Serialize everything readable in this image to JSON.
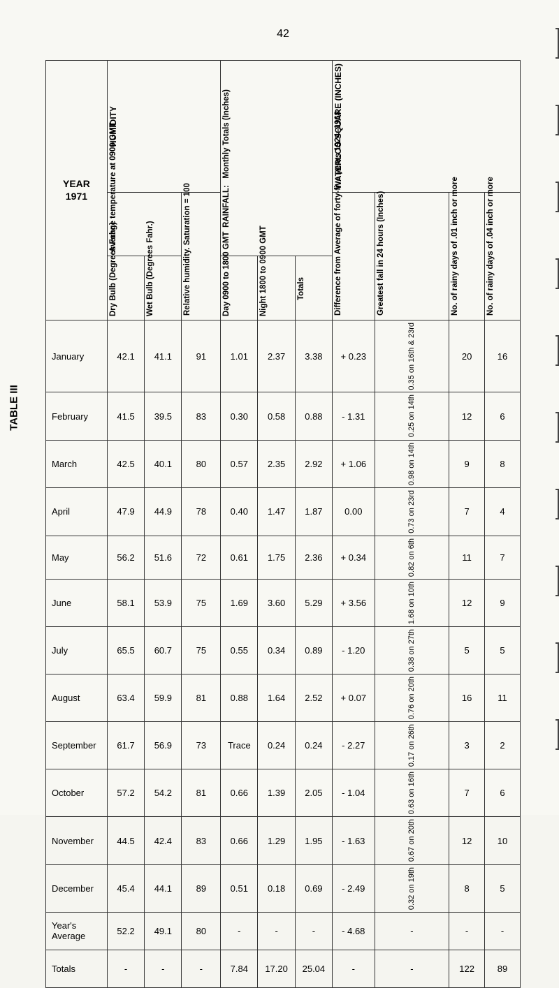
{
  "page_number": "42",
  "table_label": "TABLE III",
  "year_label_line1": "YEAR",
  "year_label_line2": "1971",
  "sections": {
    "humidity": "HUMIDITY",
    "rainfall": "RAINFALL:",
    "waterloo": "WATERLOO SQUARE (INCHES)"
  },
  "headers": {
    "avg_temp": "Average temperature\nat 0900 GMT",
    "dry_bulb": "Dry Bulb\n(Degrees\nFahr.)",
    "wet_bulb": "Wet Bulb\n(Degrees\nFahr.)",
    "rel_hum": "Relative\nhumidity.\nSaturation\n= 100",
    "monthly_totals": "Monthly Totals\n(Inches)",
    "day": "Day\n0900 to\n1800\nGMT",
    "night": "Night\n1800 to\n0900\nGMT",
    "totals": "Totals",
    "difference": "Difference\nfrom\nAverage of\nforty-five\nyears\n1924–1968",
    "greatest": "Greatest fall\nin 24 hours\n(Inches)",
    "days01": "No. of\nrainy\ndays\nof .01\ninch or\nmore",
    "days04": "No. of\nrainy\ndays\nof .04\ninch or\nmore"
  },
  "rows": [
    {
      "month": "January",
      "dry": "42.1",
      "wet": "41.1",
      "rh": "91",
      "day": "1.01",
      "night": "2.37",
      "tot": "3.38",
      "diff": "+ 0.23",
      "gf": "0.35 on 16th & 23rd",
      "d01": "20",
      "d04": "16"
    },
    {
      "month": "February",
      "dry": "41.5",
      "wet": "39.5",
      "rh": "83",
      "day": "0.30",
      "night": "0.58",
      "tot": "0.88",
      "diff": "- 1.31",
      "gf": "0.25 on 14th",
      "d01": "12",
      "d04": "6"
    },
    {
      "month": "March",
      "dry": "42.5",
      "wet": "40.1",
      "rh": "80",
      "day": "0.57",
      "night": "2.35",
      "tot": "2.92",
      "diff": "+ 1.06",
      "gf": "0.98 on 14th",
      "d01": "9",
      "d04": "8"
    },
    {
      "month": "April",
      "dry": "47.9",
      "wet": "44.9",
      "rh": "78",
      "day": "0.40",
      "night": "1.47",
      "tot": "1.87",
      "diff": "0.00",
      "gf": "0.73 on 23rd",
      "d01": "7",
      "d04": "4"
    },
    {
      "month": "May",
      "dry": "56.2",
      "wet": "51.6",
      "rh": "72",
      "day": "0.61",
      "night": "1.75",
      "tot": "2.36",
      "diff": "+ 0.34",
      "gf": "0.82 on 6th",
      "d01": "11",
      "d04": "7"
    },
    {
      "month": "June",
      "dry": "58.1",
      "wet": "53.9",
      "rh": "75",
      "day": "1.69",
      "night": "3.60",
      "tot": "5.29",
      "diff": "+ 3.56",
      "gf": "1.68 on 10th",
      "d01": "12",
      "d04": "9"
    },
    {
      "month": "July",
      "dry": "65.5",
      "wet": "60.7",
      "rh": "75",
      "day": "0.55",
      "night": "0.34",
      "tot": "0.89",
      "diff": "- 1.20",
      "gf": "0.38 on 27th",
      "d01": "5",
      "d04": "5"
    },
    {
      "month": "August",
      "dry": "63.4",
      "wet": "59.9",
      "rh": "81",
      "day": "0.88",
      "night": "1.64",
      "tot": "2.52",
      "diff": "+ 0.07",
      "gf": "0.76 on 20th",
      "d01": "16",
      "d04": "11"
    },
    {
      "month": "September",
      "dry": "61.7",
      "wet": "56.9",
      "rh": "73",
      "day": "Trace",
      "night": "0.24",
      "tot": "0.24",
      "diff": "- 2.27",
      "gf": "0.17 on 26th",
      "d01": "3",
      "d04": "2"
    },
    {
      "month": "October",
      "dry": "57.2",
      "wet": "54.2",
      "rh": "81",
      "day": "0.66",
      "night": "1.39",
      "tot": "2.05",
      "diff": "- 1.04",
      "gf": "0.63 on 16th",
      "d01": "7",
      "d04": "6"
    },
    {
      "month": "November",
      "dry": "44.5",
      "wet": "42.4",
      "rh": "83",
      "day": "0.66",
      "night": "1.29",
      "tot": "1.95",
      "diff": "- 1.63",
      "gf": "0.67 on 20th",
      "d01": "12",
      "d04": "10"
    },
    {
      "month": "December",
      "dry": "45.4",
      "wet": "44.1",
      "rh": "89",
      "day": "0.51",
      "night": "0.18",
      "tot": "0.69",
      "diff": "- 2.49",
      "gf": "0.32 on 19th",
      "d01": "8",
      "d04": "5"
    },
    {
      "month": "Year's Average",
      "dry": "52.2",
      "wet": "49.1",
      "rh": "80",
      "day": "-",
      "night": "-",
      "tot": "-",
      "diff": "- 4.68",
      "gf": "-",
      "d01": "-",
      "d04": "-"
    },
    {
      "month": "Totals",
      "dry": "-",
      "wet": "-",
      "rh": "-",
      "day": "7.84",
      "night": "17.20",
      "tot": "25.04",
      "diff": "-",
      "gf": "-",
      "d01": "122",
      "d04": "89"
    }
  ]
}
